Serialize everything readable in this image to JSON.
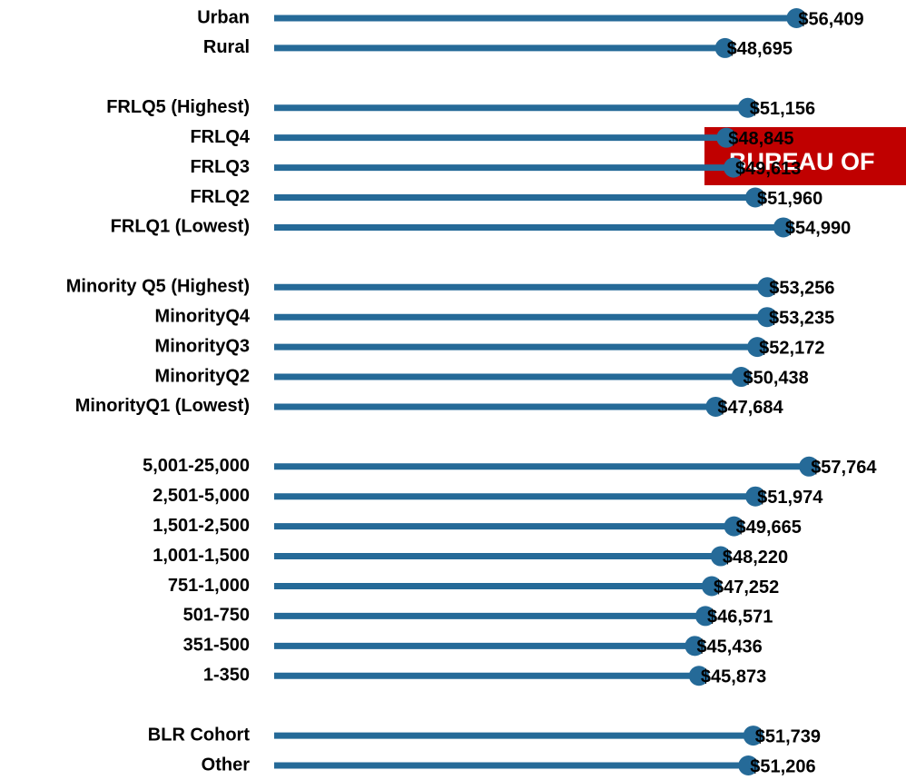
{
  "chart_data": {
    "type": "lollipop",
    "orientation": "horizontal",
    "color": "#256a98",
    "annotation": "BUREAU OF",
    "categories": [
      "Urban",
      "Rural",
      null,
      "FRLQ5 (Highest)",
      "FRLQ4",
      "FRLQ3",
      "FRLQ2",
      "FRLQ1 (Lowest)",
      null,
      "Minority Q5 (Highest)",
      "MinorityQ4",
      "MinorityQ3",
      "MinorityQ2",
      "MinorityQ1 (Lowest)",
      null,
      "5,001-25,000",
      "2,501-5,000",
      "1,501-2,500",
      "1,001-1,500",
      "751-1,000",
      "501-750",
      "351-500",
      "1-350",
      null,
      "BLR Cohort",
      "Other"
    ],
    "values": [
      56409,
      48695,
      null,
      51156,
      48845,
      49613,
      51960,
      54990,
      null,
      53256,
      53235,
      52172,
      50438,
      47684,
      null,
      57764,
      51974,
      49665,
      48220,
      47252,
      46571,
      45436,
      45873,
      null,
      51739,
      51206
    ],
    "value_labels": [
      "$56,409",
      "$48,695",
      null,
      "$51,156",
      "$48,845",
      "$49,613",
      "$51,960",
      "$54,990",
      null,
      "$53,256",
      "$53,235",
      "$52,172",
      "$50,438",
      "$47,684",
      null,
      "$57,764",
      "$51,974",
      "$49,665",
      "$48,220",
      "$47,252",
      "$46,571",
      "$45,436",
      "$45,873",
      null,
      "$51,739",
      "$51,206"
    ],
    "xlim": [
      0,
      60000
    ]
  }
}
